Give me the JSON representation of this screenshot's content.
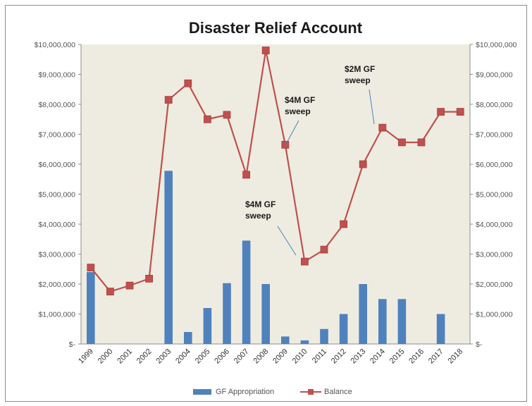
{
  "chart_data": {
    "type": "bar",
    "title": "Disaster Relief Account",
    "categories": [
      "1999",
      "2000",
      "2001",
      "2002",
      "2003",
      "2004",
      "2005",
      "2006",
      "2007",
      "2008",
      "2009",
      "2010",
      "2011",
      "2012",
      "2013",
      "2014",
      "2015",
      "2016",
      "2017",
      "2018"
    ],
    "series": [
      {
        "name": "GF Appropriation",
        "type": "bar",
        "color": "#4f81bd",
        "values": [
          2400000,
          0,
          0,
          0,
          5780000,
          400000,
          1200000,
          2030000,
          3450000,
          2000000,
          250000,
          120000,
          500000,
          1000000,
          2000000,
          1500000,
          1500000,
          0,
          1000000,
          0
        ]
      },
      {
        "name": "Balance",
        "type": "line",
        "color": "#c0504d",
        "values": [
          2550000,
          1750000,
          1950000,
          2180000,
          8150000,
          8700000,
          7500000,
          7650000,
          5650000,
          9800000,
          6650000,
          2750000,
          3150000,
          4000000,
          6000000,
          7220000,
          6730000,
          6730000,
          7750000,
          7750000
        ]
      }
    ],
    "ylim": [
      0,
      10000000
    ],
    "yticks": [
      "$-",
      "$1,000,000",
      "$2,000,000",
      "$3,000,000",
      "$4,000,000",
      "$5,000,000",
      "$6,000,000",
      "$7,000,000",
      "$8,000,000",
      "$9,000,000",
      "$10,000,000"
    ],
    "y_axes": "both sides",
    "grid": false,
    "plot_background": "#eeece1",
    "legend_position": "bottom",
    "annotations": [
      {
        "line1": "$4M GF",
        "line2": "sweep",
        "points_to": "2009"
      },
      {
        "line1": "$4M GF",
        "line2": "sweep",
        "points_to": "2010"
      },
      {
        "line1": "$2M GF",
        "line2": "sweep",
        "points_to": "2014"
      }
    ]
  }
}
